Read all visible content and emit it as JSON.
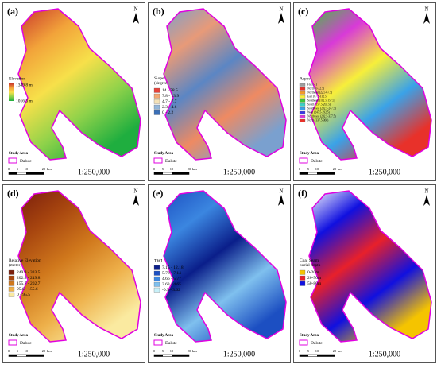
{
  "panels": [
    {
      "label": "(a)",
      "legend_title": "Elevation",
      "legend_type": "gradient",
      "legend": [
        {
          "label": "1349.8 m",
          "color": "#e8312a"
        },
        {
          "label": "1016.3 m",
          "color": "#14a844"
        }
      ],
      "fill": [
        "#c9362b",
        "#f2a33a",
        "#f7e04a",
        "#8fd24a",
        "#1fae3f"
      ]
    },
    {
      "label": "(b)",
      "legend_title": "Slope\n(degree)",
      "legend_type": "classes",
      "legend": [
        {
          "label": "14 - 78.5",
          "color": "#e8423a"
        },
        {
          "label": "7.8 - 13.9",
          "color": "#f3a772"
        },
        {
          "label": "4.7 - 7.7",
          "color": "#f4e2b8"
        },
        {
          "label": "2.3 - 4.6",
          "color": "#93b6d9"
        },
        {
          "label": "0 - 2.2",
          "color": "#3a6fb8"
        }
      ],
      "fill": [
        "#7aa0cf",
        "#e89a78",
        "#5b86c4",
        "#ef8a62",
        "#7aa0cf"
      ]
    },
    {
      "label": "(c)",
      "legend_title": "Aspect",
      "legend_type": "classes",
      "legend": [
        {
          "label": "Flat (-1)",
          "color": "#9e9e9e"
        },
        {
          "label": "North (0-22.5)",
          "color": "#e8312a"
        },
        {
          "label": "Northeast (22.5-67.5)",
          "color": "#f39a2a"
        },
        {
          "label": "East (67.5-112.5)",
          "color": "#f7ef3a"
        },
        {
          "label": "Southeast (112.5-157.5)",
          "color": "#3ec63a"
        },
        {
          "label": "South (157.5-202.5)",
          "color": "#3ad2c8"
        },
        {
          "label": "Southwest (202.5-247.5)",
          "color": "#3aa2e8"
        },
        {
          "label": "West (247.5-292.5)",
          "color": "#3a3ae0"
        },
        {
          "label": "Northwest (292.5-337.5)",
          "color": "#d83ad8"
        },
        {
          "label": "North (337.5-360)",
          "color": "#e8312a"
        }
      ],
      "fill": [
        "#3ec63a",
        "#d83ad8",
        "#f7ef3a",
        "#3aa2e8",
        "#e8312a"
      ]
    },
    {
      "label": "(d)",
      "legend_title": "Relative Elevation\n(meter)",
      "legend_type": "classes",
      "legend": [
        {
          "label": "249.9 - 333.5",
          "color": "#7a1e0c"
        },
        {
          "label": "202.8 - 249.8",
          "color": "#a8460f"
        },
        {
          "label": "155.7 - 202.7",
          "color": "#d0781c"
        },
        {
          "label": "95.6 - 155.6",
          "color": "#eeb04a"
        },
        {
          "label": "0 - 95.5",
          "color": "#faeaa0"
        }
      ],
      "fill": [
        "#7a1e0c",
        "#a8460f",
        "#d0781c",
        "#eeb04a",
        "#faeaa0"
      ]
    },
    {
      "label": "(e)",
      "legend_title": "TWI",
      "legend_type": "classes",
      "legend": [
        {
          "label": "7.15 - 12.18",
          "color": "#0a1e8a"
        },
        {
          "label": "5.78 - 7.14",
          "color": "#1c4fc2"
        },
        {
          "label": "4.66 - 5.77",
          "color": "#3b86e0"
        },
        {
          "label": "3.63 - 4.65",
          "color": "#7fc0ee"
        },
        {
          "label": "-0.5 - 3.62",
          "color": "#c8f0f8"
        }
      ],
      "fill": [
        "#1c4fc2",
        "#3b86e0",
        "#0a1e8a",
        "#7fc0ee",
        "#1c4fc2"
      ]
    },
    {
      "label": "(f)",
      "legend_title": "Coal Seam\nburial depth",
      "legend_type": "classes",
      "legend": [
        {
          "label": "0-20m",
          "color": "#f5c400"
        },
        {
          "label": "20-50m",
          "color": "#e8202a"
        },
        {
          "label": "50-80m",
          "color": "#1010e0"
        }
      ],
      "fill": [
        "#ffffff",
        "#1010e0",
        "#e8202a",
        "#1010e0",
        "#f5c400"
      ]
    }
  ],
  "common": {
    "study_area": "Study Area",
    "area_name": "Dalute",
    "scale": "1:250,000",
    "north": "N",
    "scale_bar": [
      "0",
      "5",
      "10",
      "20"
    ],
    "scale_unit": "km"
  }
}
